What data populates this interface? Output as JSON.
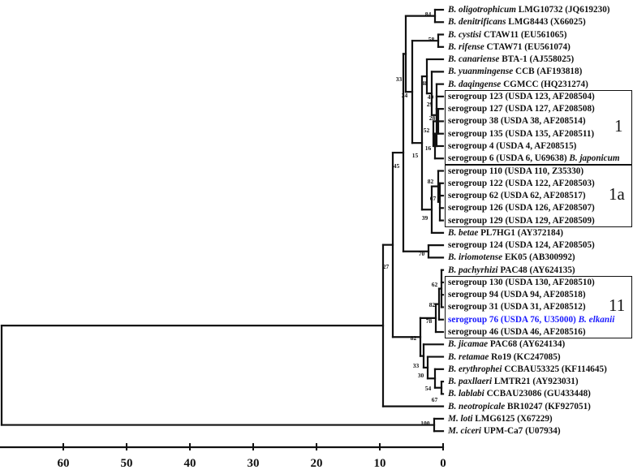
{
  "figure": {
    "type": "phylogenetic-tree",
    "scale_axis": {
      "ticks": [
        "60",
        "50",
        "40",
        "30",
        "20",
        "10",
        "0"
      ],
      "tick_values": [
        60,
        50,
        40,
        30,
        20,
        10,
        0
      ]
    }
  },
  "leaves": [
    {
      "italic": "B. oligotrophicum",
      "rest": " LMG10732 (JQ619230)",
      "color": "#111111"
    },
    {
      "italic": "B. denitrificans",
      "rest": " LMG8443 (X66025)",
      "color": "#111111"
    },
    {
      "italic": "B. cystisi",
      "rest": " CTAW11 (EU561065)",
      "color": "#111111"
    },
    {
      "italic": "B. rifense",
      "rest": " CTAW71 (EU561074)",
      "color": "#111111"
    },
    {
      "italic": "B. canariense",
      "rest": " BTA-1 (AJ558025)",
      "color": "#111111"
    },
    {
      "italic": "B. yuanmingense",
      "rest": " CCB (AF193818)",
      "color": "#111111"
    },
    {
      "italic": "B. daqingense",
      "rest": " CGMCC (HQ231274)",
      "color": "#111111"
    },
    {
      "italic": "",
      "rest": "serogroup 123 (USDA 123, AF208504)",
      "color": "#111111"
    },
    {
      "italic": "",
      "rest": "serogroup 127 (USDA 127, AF208508)",
      "color": "#111111"
    },
    {
      "italic": "",
      "rest": "serogroup 38 (USDA 38, AF208514)",
      "color": "#111111"
    },
    {
      "italic": "",
      "rest": "serogroup 135 (USDA 135, AF208511)",
      "color": "#111111"
    },
    {
      "italic": "",
      "rest": "serogroup 4 (USDA 4, AF208515)",
      "color": "#111111"
    },
    {
      "italic": "",
      "rest": "serogroup 6 (USDA 6, U69638) ",
      "suffix_italic": "B. japonicum",
      "color": "#111111"
    },
    {
      "italic": "",
      "rest": "serogroup 110 (USDA 110, Z35330)",
      "color": "#111111"
    },
    {
      "italic": "",
      "rest": "serogroup 122 (USDA 122, AF208503)",
      "color": "#111111"
    },
    {
      "italic": "",
      "rest": "serogroup 62 (USDA 62, AF208517)",
      "color": "#111111"
    },
    {
      "italic": "",
      "rest": "serogroup 126 (USDA 126, AF208507)",
      "color": "#111111"
    },
    {
      "italic": "",
      "rest": "serogroup 129 (USDA 129, AF208509)",
      "color": "#111111"
    },
    {
      "italic": "B. betae",
      "rest": " PL7HG1 (AY372184)",
      "color": "#111111"
    },
    {
      "italic": "",
      "rest": "serogroup 124 (USDA 124, AF208505)",
      "color": "#111111"
    },
    {
      "italic": "B. iriomotense",
      "rest": " EK05 (AB300992)",
      "color": "#111111"
    },
    {
      "italic": "B. pachyrhizi",
      "rest": " PAC48 (AY624135)",
      "color": "#111111"
    },
    {
      "italic": "",
      "rest": "serogroup 130 (USDA 130, AF208510)",
      "color": "#111111"
    },
    {
      "italic": "",
      "rest": "serogroup 94 (USDA 94, AF208518)",
      "color": "#111111"
    },
    {
      "italic": "",
      "rest": "serogroup 31  (USDA 31, AF208512)",
      "color": "#111111"
    },
    {
      "italic": "",
      "rest": "serogroup 76 (USDA 76, U35000) ",
      "suffix_italic": "B. elkanii",
      "color": "#1a1aff"
    },
    {
      "italic": "",
      "rest": "serogroup 46 (USDA 46, AF208516)",
      "color": "#111111"
    },
    {
      "italic": "B. jicamae",
      "rest": " PAC68 (AY624134)",
      "color": "#111111"
    },
    {
      "italic": "B. retamae",
      "rest": " Ro19 (KC247085)",
      "color": "#111111"
    },
    {
      "italic": "B. erythrophei",
      "rest": " CCBAU53325 (KF114645)",
      "color": "#111111"
    },
    {
      "italic": "B. paxllaeri",
      "rest": " LMTR21 (AY923031)",
      "color": "#111111"
    },
    {
      "italic": "B. lablabi",
      "rest": " CCBAU23086 (GU433448)",
      "color": "#111111"
    },
    {
      "italic": "B. neotropicale",
      "rest": " BR10247 (KF927051)",
      "color": "#111111"
    },
    {
      "italic": "M. loti",
      "rest": "  LMG6125 (X67229)",
      "color": "#111111"
    },
    {
      "italic": "M. ciceri",
      "rest": "  UPM-Ca7 (U07934)",
      "color": "#111111"
    }
  ],
  "groups": [
    {
      "label": "1",
      "first_leaf": 7,
      "last_leaf": 12
    },
    {
      "label": "1a",
      "first_leaf": 13,
      "last_leaf": 17
    },
    {
      "label": "11",
      "first_leaf": 22,
      "last_leaf": 26
    }
  ],
  "bootstrap_values": [
    "84",
    "58",
    "33",
    "24",
    "48",
    "29",
    "49",
    "28",
    "52",
    "16",
    "15",
    "45",
    "82",
    "67",
    "39",
    "70",
    "27",
    "62",
    "82",
    "78",
    "82",
    "33",
    "30",
    "54",
    "67",
    "100"
  ],
  "highlight_color": "#1a1aff"
}
